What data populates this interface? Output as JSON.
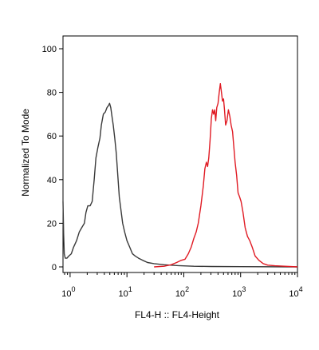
{
  "chart_data": {
    "type": "line",
    "xlabel": "FL4-H :: FL4-Height",
    "ylabel": "Normalized To Mode",
    "x_scale": "log",
    "xlim": [
      0.75,
      10000
    ],
    "ylim": [
      0,
      105
    ],
    "x_ticks": [
      {
        "base": "10",
        "exp": "0",
        "value": 1
      },
      {
        "base": "10",
        "exp": "1",
        "value": 10
      },
      {
        "base": "10",
        "exp": "2",
        "value": 100
      },
      {
        "base": "10",
        "exp": "3",
        "value": 1000
      },
      {
        "base": "10",
        "exp": "4",
        "value": 10000
      }
    ],
    "y_ticks": [
      "0",
      "20",
      "40",
      "60",
      "80",
      "100"
    ],
    "grid": false,
    "series": [
      {
        "color": "#3a3a3a",
        "points": [
          [
            0.75,
            30
          ],
          [
            0.77,
            15
          ],
          [
            0.79,
            6
          ],
          [
            0.82,
            4
          ],
          [
            0.88,
            4
          ],
          [
            0.95,
            5
          ],
          [
            1.05,
            6
          ],
          [
            1.15,
            9
          ],
          [
            1.3,
            12
          ],
          [
            1.45,
            16
          ],
          [
            1.6,
            18
          ],
          [
            1.78,
            20
          ],
          [
            1.9,
            25
          ],
          [
            2.05,
            28
          ],
          [
            2.25,
            28
          ],
          [
            2.45,
            30
          ],
          [
            2.65,
            40
          ],
          [
            2.85,
            50
          ],
          [
            3.1,
            55
          ],
          [
            3.35,
            59
          ],
          [
            3.55,
            65
          ],
          [
            3.85,
            70
          ],
          [
            4.15,
            71
          ],
          [
            4.45,
            73
          ],
          [
            4.75,
            74
          ],
          [
            4.95,
            75
          ],
          [
            5.2,
            73
          ],
          [
            5.45,
            69
          ],
          [
            5.75,
            65
          ],
          [
            6.1,
            59
          ],
          [
            6.5,
            52
          ],
          [
            6.9,
            42
          ],
          [
            7.35,
            32
          ],
          [
            7.85,
            26
          ],
          [
            8.4,
            20
          ],
          [
            9.1,
            16
          ],
          [
            10.0,
            12
          ],
          [
            11.2,
            9
          ],
          [
            12.5,
            6
          ],
          [
            14.0,
            5
          ],
          [
            16.0,
            4
          ],
          [
            19.0,
            3
          ],
          [
            23.0,
            2
          ],
          [
            30.0,
            1.5
          ],
          [
            45.0,
            1
          ],
          [
            80.0,
            0.6
          ],
          [
            150,
            0.3
          ],
          [
            300,
            0.2
          ],
          [
            1000,
            0.1
          ],
          [
            10000,
            0
          ]
        ]
      },
      {
        "color": "#e01b24",
        "points": [
          [
            30,
            0
          ],
          [
            45,
            0.3
          ],
          [
            60,
            1
          ],
          [
            75,
            2
          ],
          [
            90,
            3
          ],
          [
            105,
            3.5
          ],
          [
            120,
            6
          ],
          [
            135,
            9
          ],
          [
            150,
            13
          ],
          [
            165,
            16
          ],
          [
            180,
            20
          ],
          [
            200,
            28
          ],
          [
            220,
            37
          ],
          [
            235,
            45
          ],
          [
            250,
            48
          ],
          [
            262,
            46
          ],
          [
            275,
            50
          ],
          [
            290,
            58
          ],
          [
            305,
            68
          ],
          [
            320,
            72
          ],
          [
            335,
            70
          ],
          [
            350,
            72
          ],
          [
            365,
            67
          ],
          [
            380,
            73
          ],
          [
            400,
            75
          ],
          [
            420,
            80
          ],
          [
            440,
            84
          ],
          [
            460,
            80
          ],
          [
            480,
            76
          ],
          [
            500,
            77
          ],
          [
            520,
            72
          ],
          [
            545,
            65
          ],
          [
            575,
            67
          ],
          [
            610,
            72
          ],
          [
            645,
            69
          ],
          [
            680,
            65
          ],
          [
            720,
            62
          ],
          [
            760,
            55
          ],
          [
            800,
            48
          ],
          [
            850,
            42
          ],
          [
            900,
            34
          ],
          [
            960,
            32
          ],
          [
            1020,
            30
          ],
          [
            1100,
            25
          ],
          [
            1200,
            18
          ],
          [
            1320,
            14
          ],
          [
            1450,
            12
          ],
          [
            1600,
            9
          ],
          [
            1800,
            5
          ],
          [
            2100,
            3
          ],
          [
            2500,
            1.5
          ],
          [
            3000,
            0.8
          ],
          [
            4000,
            0.5
          ],
          [
            6000,
            0.3
          ],
          [
            10000,
            0
          ]
        ]
      }
    ]
  }
}
